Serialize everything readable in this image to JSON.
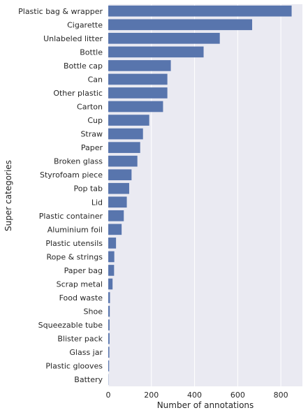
{
  "chart_data": {
    "type": "bar",
    "orientation": "horizontal",
    "xlabel": "Number of annotations",
    "ylabel": "Super categories",
    "xlim": [
      0,
      900
    ],
    "xticks": [
      0,
      200,
      400,
      600,
      800
    ],
    "grid": true,
    "bar_color": "#5875ad",
    "plot_bg_color": "#eaeaf2",
    "categories": [
      "Plastic bag & wrapper",
      "Cigarette",
      "Unlabeled litter",
      "Bottle",
      "Bottle cap",
      "Can",
      "Other plastic",
      "Carton",
      "Cup",
      "Straw",
      "Paper",
      "Broken glass",
      "Styrofoam piece",
      "Pop tab",
      "Lid",
      "Plastic container",
      "Aluminium foil",
      "Plastic utensils",
      "Rope & strings",
      "Paper bag",
      "Scrap metal",
      "Food waste",
      "Shoe",
      "Squeezable tube",
      "Blister pack",
      "Glass jar",
      "Plastic glooves",
      "Battery"
    ],
    "values": [
      850,
      667,
      517,
      442,
      290,
      274,
      274,
      254,
      190,
      161,
      148,
      135,
      108,
      97,
      86,
      72,
      62,
      36,
      28,
      27,
      20,
      8,
      7,
      6,
      6,
      5,
      4,
      1
    ]
  }
}
